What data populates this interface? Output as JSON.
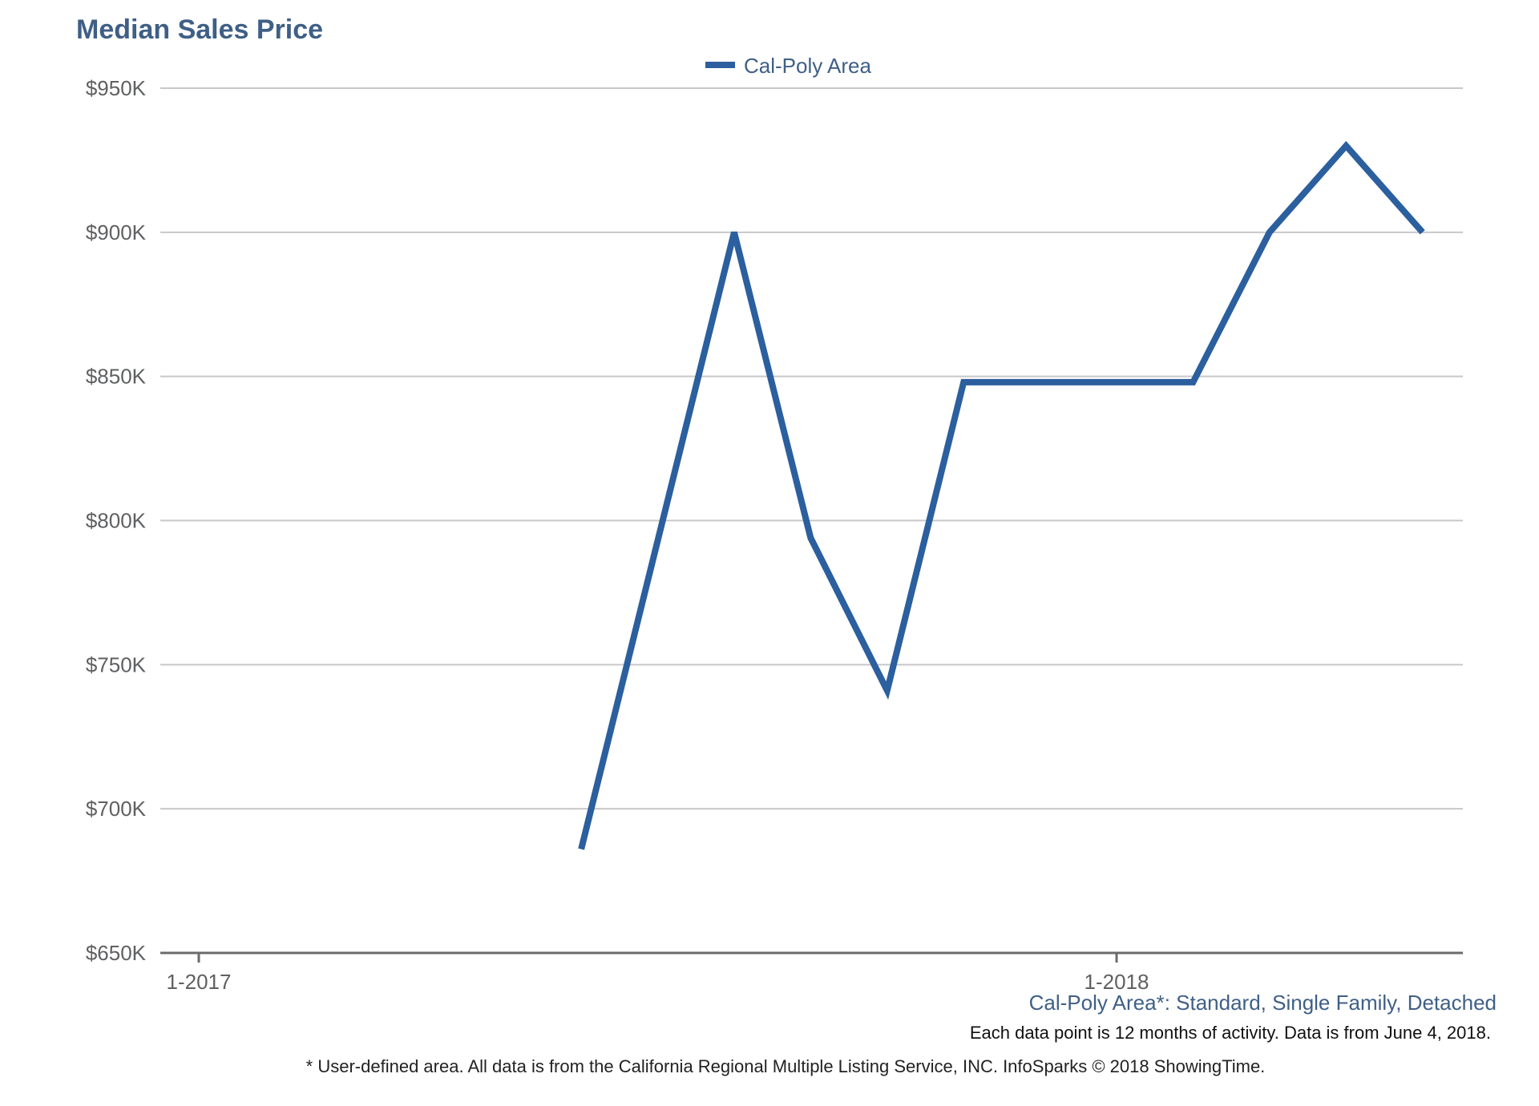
{
  "chart_data": {
    "type": "line",
    "title": "Median Sales Price",
    "xlabel": "",
    "ylabel": "",
    "x_tick_labels": [
      "1-2017",
      "1-2018"
    ],
    "y_tick_labels": [
      "$650K",
      "$700K",
      "$750K",
      "$800K",
      "$850K",
      "$900K",
      "$950K"
    ],
    "y_ticks": [
      650,
      700,
      750,
      800,
      850,
      900,
      950
    ],
    "ylim": [
      650,
      950
    ],
    "x": [
      "2017-06",
      "2017-07",
      "2017-08",
      "2017-09",
      "2017-10",
      "2017-11",
      "2017-12",
      "2018-01",
      "2018-02",
      "2018-03",
      "2018-04",
      "2018-05"
    ],
    "series": [
      {
        "name": "Cal-Poly Area",
        "color": "#2b5f9e",
        "values": [
          686,
          null,
          900,
          794,
          741,
          848,
          848,
          848,
          848,
          900,
          930,
          900
        ]
      }
    ],
    "grid": true,
    "legend_position": "top-center"
  },
  "notes": {
    "series_description": "Cal-Poly Area*: Standard, Single Family, Detached",
    "activity": "Each data point is 12 months of activity. Data is from June 4, 2018.",
    "source": "* User-defined area. All data is from the California Regional Multiple Listing Service, INC. InfoSparks © 2018 ShowingTime."
  },
  "colors": {
    "series": "#2b5f9e",
    "title": "#3f5f86",
    "grid": "#c8c8c8",
    "axis": "#6b6b6b"
  }
}
